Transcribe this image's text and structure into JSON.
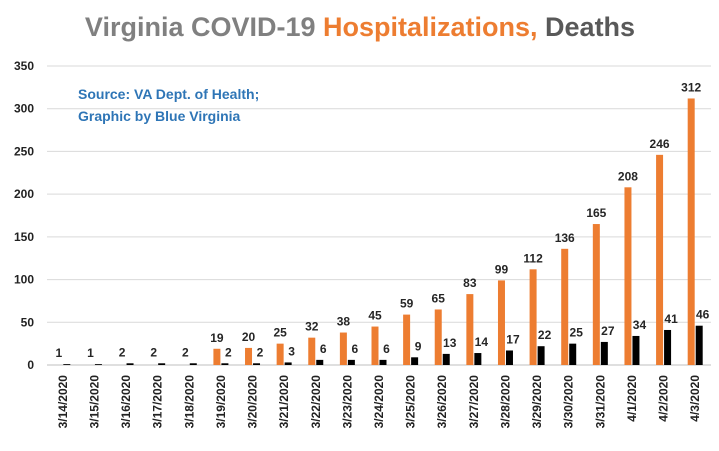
{
  "title": {
    "part1": "Virginia COVID-19 ",
    "part2": "Hospitalizations,",
    "part3": " Deaths",
    "color1": "#808080",
    "color2": "#ed7d31",
    "color3": "#595959"
  },
  "source": {
    "line1": "Source: VA Dept. of Health;",
    "line2": "Graphic by Blue Virginia"
  },
  "colors": {
    "hospitalizations": "#ed7d31",
    "deaths": "#000000",
    "gridline": "#d9d9d9",
    "axis": "#bfbfbf"
  },
  "chart_data": {
    "type": "bar",
    "title": "Virginia COVID-19 Hospitalizations, Deaths",
    "categories": [
      "3/14/2020",
      "3/15/2020",
      "3/16/2020",
      "3/17/2020",
      "3/18/2020",
      "3/19/2020",
      "3/20/2020",
      "3/21/2020",
      "3/22/2020",
      "3/23/2020",
      "3/24/2020",
      "3/25/2020",
      "3/26/2020",
      "3/27/2020",
      "3/28/2020",
      "3/29/2020",
      "3/30/2020",
      "3/31/2020",
      "4/1/2020",
      "4/2/2020",
      "4/3/2020"
    ],
    "series": [
      {
        "values": [
          0,
          0,
          0,
          0,
          0,
          19,
          20,
          25,
          32,
          38,
          45,
          59,
          65,
          83,
          99,
          112,
          136,
          165,
          208,
          246,
          312
        ],
        "labels": [
          "",
          "",
          "",
          "",
          "",
          "19",
          "20",
          "25",
          "32",
          "38",
          "45",
          "59",
          "65",
          "83",
          "99",
          "112",
          "136",
          "165",
          "208",
          "246",
          "312"
        ]
      },
      {
        "values": [
          1,
          1,
          2,
          2,
          2,
          2,
          2,
          3,
          6,
          6,
          6,
          9,
          13,
          14,
          17,
          22,
          25,
          27,
          34,
          41,
          46
        ]
      }
    ],
    "yticks": [
      0,
      50,
      100,
      150,
      200,
      250,
      300,
      350
    ],
    "ylim": [
      0,
      350
    ],
    "grid": true,
    "legend": "none"
  }
}
